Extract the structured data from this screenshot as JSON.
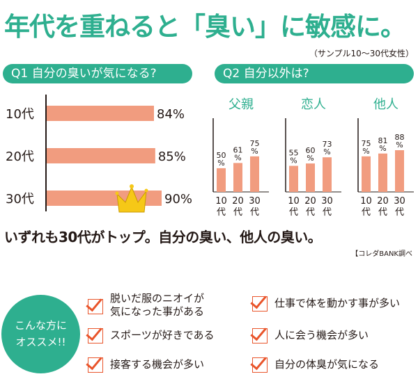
{
  "headline": "年代を重ねると「臭い」に敏感に。",
  "subnote": "（サンプル10～30代女性）",
  "summary": "いずれも30代がトップ。自分の臭い、他人の臭い。",
  "source": "【コレダBANK調べ",
  "badge": {
    "line1": "こんな方に",
    "line2": "オススメ!!"
  },
  "recommendations": [
    {
      "line1": "脱いだ服のニオイが",
      "line2": "気になった事がある"
    },
    {
      "line1": "仕事で体を動かす事が多い"
    },
    {
      "line1": "スポーツが好きである"
    },
    {
      "line1": "人に会う機会が多い"
    },
    {
      "line1": "接客する機会が多い"
    },
    {
      "line1": "自分の体臭が気になる"
    }
  ],
  "colors": {
    "accent": "#2eaf8f",
    "bar": "#f19c7f",
    "check": "#e9542a",
    "crown": "#f6c817"
  },
  "chart_data": [
    {
      "type": "bar",
      "orientation": "horizontal",
      "title": "Q1 自分の臭いが気になる?",
      "categories": [
        "10代",
        "20代",
        "30代"
      ],
      "values": [
        84,
        85,
        90
      ],
      "value_labels": [
        "84%",
        "85%",
        "90%"
      ],
      "highlight": "30代",
      "highlight_icon": "crown-icon"
    },
    {
      "type": "bar",
      "title": "Q2 自分以外は?",
      "groups": [
        {
          "name": "父親",
          "categories": [
            "10\n代",
            "20\n代",
            "30\n代"
          ],
          "values": [
            50,
            61,
            75
          ]
        },
        {
          "name": "恋人",
          "categories": [
            "10\n代",
            "20\n代",
            "30\n代"
          ],
          "values": [
            55,
            60,
            73
          ]
        },
        {
          "name": "他人",
          "categories": [
            "10\n代",
            "20\n代",
            "30\n代"
          ],
          "values": [
            75,
            81,
            88
          ]
        }
      ]
    }
  ]
}
